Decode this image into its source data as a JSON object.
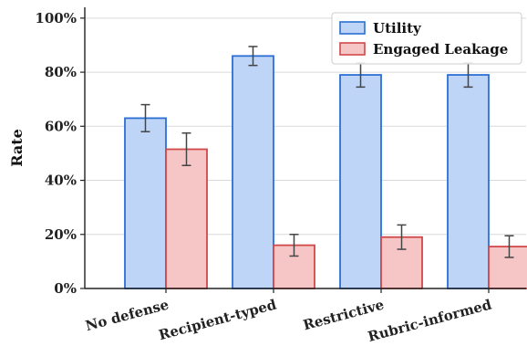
{
  "chart_data": {
    "type": "bar",
    "categories": [
      "No defense",
      "Recipient-typed",
      "Restrictive",
      "Rubric-informed"
    ],
    "series": [
      {
        "name": "Utility",
        "values": [
          63,
          86,
          79,
          79
        ],
        "error": [
          5,
          3.5,
          4.5,
          4.5
        ],
        "color": "#bfd5f7",
        "edge_color": "#2b6fd3"
      },
      {
        "name": "Engaged Leakage",
        "values": [
          51.5,
          16,
          19,
          15.5
        ],
        "error": [
          6,
          4,
          4.5,
          4
        ],
        "color": "#f6c6c6",
        "edge_color": "#d04848"
      }
    ],
    "ylabel": "Rate",
    "ylim": [
      0,
      100
    ],
    "yticks": [
      0,
      20,
      40,
      60,
      80,
      100
    ],
    "ytick_labels": [
      "0%",
      "20%",
      "40%",
      "60%",
      "80%",
      "100%"
    ],
    "grid": "horizontal",
    "legend_position": "top-right",
    "error_bar_color": "#444444"
  }
}
